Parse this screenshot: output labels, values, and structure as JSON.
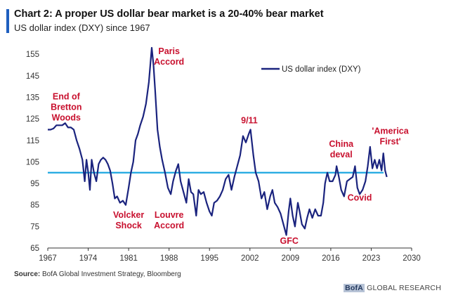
{
  "header": {
    "title": "Chart 2: A proper US dollar bear market is a 20-40% bear market",
    "subtitle": "US dollar index (DXY) since 1967"
  },
  "footer": {
    "source_label": "Source:",
    "source_text": "BofA Global Investment Strategy, Bloomberg",
    "brand_logo": "BofA",
    "brand_text": "GLOBAL RESEARCH"
  },
  "colors": {
    "series": "#1a237e",
    "reference_line": "#1ea7e1",
    "annotation": "#c8102e",
    "accent": "#1f5fbf"
  },
  "chart_data": {
    "type": "line",
    "title": "Chart 2: A proper US dollar bear market is a 20-40% bear market",
    "subtitle": "US dollar index (DXY) since 1967",
    "xlabel": "",
    "ylabel": "",
    "xlim": [
      1967,
      2030
    ],
    "ylim": [
      65,
      158
    ],
    "x_ticks": [
      1967,
      1974,
      1981,
      1988,
      1995,
      2002,
      2009,
      2016,
      2023,
      2030
    ],
    "y_ticks": [
      65,
      75,
      85,
      95,
      105,
      115,
      125,
      135,
      145,
      155
    ],
    "grid": false,
    "legend": {
      "position": "top-right",
      "entries": [
        "US dollar index (DXY)"
      ]
    },
    "reference_line": {
      "y": 100
    },
    "series": [
      {
        "name": "US dollar index (DXY)",
        "points": [
          [
            1967.0,
            120
          ],
          [
            1967.5,
            120
          ],
          [
            1968.0,
            120.5
          ],
          [
            1968.5,
            122
          ],
          [
            1969.0,
            122
          ],
          [
            1969.5,
            122
          ],
          [
            1970.0,
            123
          ],
          [
            1970.5,
            121
          ],
          [
            1971.0,
            121
          ],
          [
            1971.5,
            120
          ],
          [
            1972.0,
            115
          ],
          [
            1972.5,
            111
          ],
          [
            1973.0,
            106
          ],
          [
            1973.4,
            96
          ],
          [
            1973.7,
            106
          ],
          [
            1974.0,
            100
          ],
          [
            1974.3,
            92
          ],
          [
            1974.6,
            106
          ],
          [
            1975.0,
            100
          ],
          [
            1975.4,
            96
          ],
          [
            1975.8,
            104
          ],
          [
            1976.2,
            106
          ],
          [
            1976.6,
            107
          ],
          [
            1977.0,
            106
          ],
          [
            1977.4,
            104
          ],
          [
            1977.8,
            101
          ],
          [
            1978.2,
            95
          ],
          [
            1978.6,
            88
          ],
          [
            1979.0,
            89
          ],
          [
            1979.5,
            86
          ],
          [
            1980.0,
            87
          ],
          [
            1980.5,
            85
          ],
          [
            1981.0,
            93
          ],
          [
            1981.4,
            100
          ],
          [
            1981.8,
            105
          ],
          [
            1982.2,
            115
          ],
          [
            1982.6,
            118
          ],
          [
            1983.0,
            122
          ],
          [
            1983.5,
            126
          ],
          [
            1984.0,
            132
          ],
          [
            1984.5,
            142
          ],
          [
            1985.0,
            158
          ],
          [
            1985.3,
            150
          ],
          [
            1985.6,
            138
          ],
          [
            1986.0,
            120
          ],
          [
            1986.4,
            112
          ],
          [
            1986.8,
            106
          ],
          [
            1987.3,
            100
          ],
          [
            1987.8,
            93
          ],
          [
            1988.3,
            90
          ],
          [
            1988.7,
            96
          ],
          [
            1989.2,
            101
          ],
          [
            1989.6,
            104
          ],
          [
            1990.0,
            96
          ],
          [
            1990.5,
            91
          ],
          [
            1991.0,
            86
          ],
          [
            1991.4,
            97
          ],
          [
            1991.8,
            91
          ],
          [
            1992.2,
            90
          ],
          [
            1992.7,
            80
          ],
          [
            1993.1,
            92
          ],
          [
            1993.5,
            90
          ],
          [
            1994.0,
            91
          ],
          [
            1994.5,
            86
          ],
          [
            1995.0,
            82
          ],
          [
            1995.4,
            80
          ],
          [
            1995.8,
            86
          ],
          [
            1996.3,
            87
          ],
          [
            1996.8,
            89
          ],
          [
            1997.3,
            92
          ],
          [
            1997.8,
            97
          ],
          [
            1998.3,
            99
          ],
          [
            1998.8,
            92
          ],
          [
            1999.3,
            98
          ],
          [
            1999.8,
            103
          ],
          [
            2000.3,
            108
          ],
          [
            2000.8,
            117
          ],
          [
            2001.3,
            114
          ],
          [
            2001.8,
            118
          ],
          [
            2002.1,
            120
          ],
          [
            2002.6,
            108
          ],
          [
            2003.0,
            100
          ],
          [
            2003.5,
            96
          ],
          [
            2004.0,
            88
          ],
          [
            2004.5,
            91
          ],
          [
            2005.0,
            83
          ],
          [
            2005.5,
            89
          ],
          [
            2005.9,
            92
          ],
          [
            2006.3,
            86
          ],
          [
            2006.8,
            84
          ],
          [
            2007.3,
            81
          ],
          [
            2007.8,
            76
          ],
          [
            2008.3,
            71
          ],
          [
            2008.7,
            82
          ],
          [
            2009.0,
            88
          ],
          [
            2009.4,
            80
          ],
          [
            2009.8,
            75
          ],
          [
            2010.3,
            86
          ],
          [
            2010.6,
            82
          ],
          [
            2011.0,
            76
          ],
          [
            2011.5,
            74
          ],
          [
            2011.9,
            79
          ],
          [
            2012.3,
            83
          ],
          [
            2012.8,
            79
          ],
          [
            2013.3,
            83
          ],
          [
            2013.8,
            80
          ],
          [
            2014.3,
            80
          ],
          [
            2014.7,
            86
          ],
          [
            2015.0,
            95
          ],
          [
            2015.4,
            100
          ],
          [
            2015.8,
            96
          ],
          [
            2016.3,
            96
          ],
          [
            2016.8,
            99
          ],
          [
            2017.0,
            103
          ],
          [
            2017.4,
            98
          ],
          [
            2017.8,
            92
          ],
          [
            2018.3,
            89
          ],
          [
            2018.8,
            96
          ],
          [
            2019.3,
            97
          ],
          [
            2019.8,
            98
          ],
          [
            2020.2,
            103
          ],
          [
            2020.6,
            93
          ],
          [
            2021.0,
            90
          ],
          [
            2021.5,
            92
          ],
          [
            2022.0,
            96
          ],
          [
            2022.4,
            103
          ],
          [
            2022.8,
            112
          ],
          [
            2023.2,
            102
          ],
          [
            2023.6,
            106
          ],
          [
            2024.0,
            102
          ],
          [
            2024.4,
            106
          ],
          [
            2024.8,
            101
          ],
          [
            2025.1,
            109
          ],
          [
            2025.4,
            101
          ],
          [
            2025.7,
            98
          ]
        ]
      }
    ],
    "annotations": [
      {
        "lines": [
          "End of",
          "Bretton",
          "Woods"
        ],
        "x": 1970.2,
        "y": 134
      },
      {
        "lines": [
          "Volcker",
          "Shock"
        ],
        "x": 1981.0,
        "y": 79
      },
      {
        "lines": [
          "Paris",
          "Accord"
        ],
        "x": 1988.0,
        "y": 155
      },
      {
        "lines": [
          "Louvre",
          "Accord"
        ],
        "x": 1988.0,
        "y": 79
      },
      {
        "lines": [
          "9/11"
        ],
        "x": 2001.9,
        "y": 123
      },
      {
        "lines": [
          "GFC"
        ],
        "x": 2008.8,
        "y": 67
      },
      {
        "lines": [
          "China",
          "deval"
        ],
        "x": 2017.8,
        "y": 112
      },
      {
        "lines": [
          "Covid"
        ],
        "x": 2021.0,
        "y": 87
      },
      {
        "lines": [
          "'America",
          "First'"
        ],
        "x": 2026.3,
        "y": 118
      }
    ]
  }
}
